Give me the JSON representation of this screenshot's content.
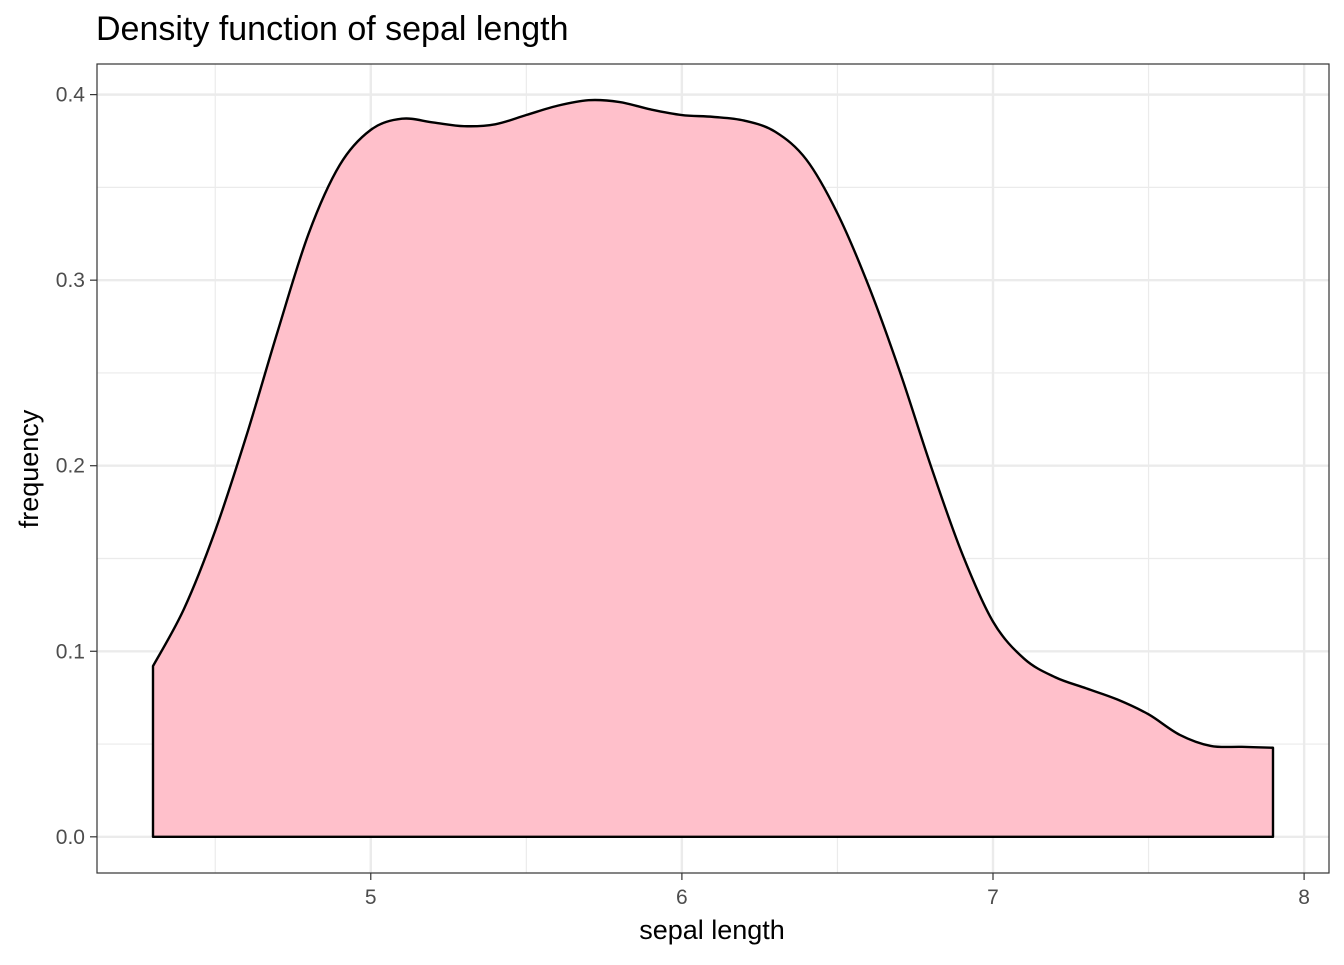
{
  "chart_data": {
    "type": "area",
    "title": "Density function of sepal length",
    "xlabel": "sepal length",
    "ylabel": "frequency",
    "xlim": [
      4.12,
      8.08
    ],
    "ylim": [
      -0.0195,
      0.4165
    ],
    "x_ticks": [
      5,
      6,
      7,
      8
    ],
    "x_tick_labels": [
      "5",
      "6",
      "7",
      "8"
    ],
    "y_ticks": [
      0.0,
      0.1,
      0.2,
      0.3,
      0.4
    ],
    "y_tick_labels": [
      "0.0",
      "0.1",
      "0.2",
      "0.3",
      "0.4"
    ],
    "x_minor_ticks": [
      4.5,
      5.5,
      6.5,
      7.5
    ],
    "y_minor_ticks": [
      0.05,
      0.15,
      0.25,
      0.35
    ],
    "grid": true,
    "legend": "none",
    "fill_color": "#ffc0cb",
    "line_color": "#000000",
    "series": [
      {
        "x": [
          4.3,
          4.4,
          4.5,
          4.6,
          4.7,
          4.8,
          4.9,
          5.0,
          5.1,
          5.2,
          5.3,
          5.4,
          5.5,
          5.6,
          5.7,
          5.8,
          5.9,
          6.0,
          6.1,
          6.2,
          6.3,
          6.4,
          6.5,
          6.6,
          6.7,
          6.8,
          6.9,
          7.0,
          7.1,
          7.2,
          7.3,
          7.4,
          7.5,
          7.6,
          7.7,
          7.8,
          7.9
        ],
        "y": [
          0.092,
          0.123,
          0.165,
          0.216,
          0.272,
          0.325,
          0.362,
          0.381,
          0.387,
          0.385,
          0.383,
          0.384,
          0.389,
          0.394,
          0.397,
          0.396,
          0.392,
          0.389,
          0.388,
          0.386,
          0.38,
          0.365,
          0.336,
          0.297,
          0.251,
          0.2,
          0.153,
          0.116,
          0.096,
          0.086,
          0.08,
          0.074,
          0.066,
          0.055,
          0.049,
          0.0485,
          0.048
        ]
      }
    ]
  }
}
